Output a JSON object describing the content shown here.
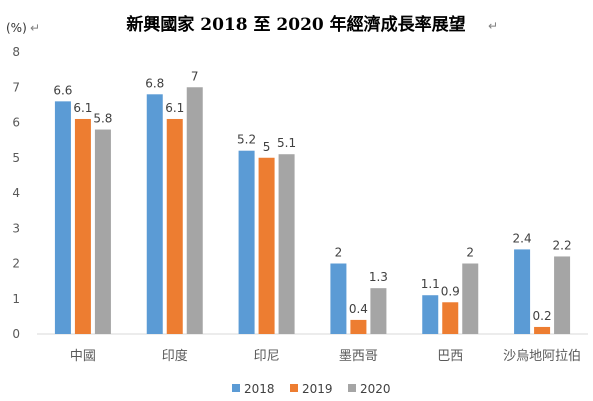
{
  "chart_data": {
    "type": "bar",
    "title": "新興國家 2018 至 2020 年經濟成長率展望",
    "ylabel": "(%)",
    "categories": [
      "中國",
      "印度",
      "印尼",
      "墨西哥",
      "巴西",
      "沙烏地阿拉伯"
    ],
    "series": [
      {
        "name": "2018",
        "values": [
          6.6,
          6.8,
          5.2,
          2,
          1.1,
          2.4
        ],
        "color": "#5b9bd5"
      },
      {
        "name": "2019",
        "values": [
          6.1,
          6.1,
          5,
          0.4,
          0.9,
          0.2
        ],
        "color": "#ed7d31"
      },
      {
        "name": "2020",
        "values": [
          5.8,
          7,
          5.1,
          1.3,
          2,
          2.2
        ],
        "color": "#a5a5a5"
      }
    ],
    "yticks": [
      "0",
      "1",
      "2",
      "3",
      "4",
      "5",
      "6",
      "7",
      "8"
    ],
    "ylim": [
      0,
      8
    ],
    "grid": false,
    "legend": "bottom"
  }
}
